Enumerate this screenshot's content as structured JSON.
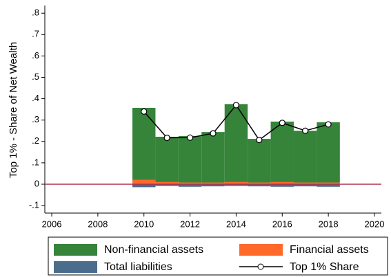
{
  "chart_data": {
    "type": "bar",
    "y_label": "Top 1% - Share of Net Wealth",
    "x": [
      2010,
      2011,
      2012,
      2013,
      2014,
      2015,
      2016,
      2017,
      2018
    ],
    "xlim": [
      2005.7,
      2020.3
    ],
    "xticks": [
      2006,
      2008,
      2010,
      2012,
      2014,
      2016,
      2018,
      2020
    ],
    "ylim": [
      -0.135,
      0.836
    ],
    "yticks": [
      {
        "value": -0.1,
        "label": "-.1"
      },
      0,
      {
        "value": 0.1,
        "label": ".1"
      },
      {
        "value": 0.2,
        "label": ".2"
      },
      {
        "value": 0.3,
        "label": ".3"
      },
      {
        "value": 0.4,
        "label": ".4"
      },
      {
        "value": 0.5,
        "label": ".5"
      },
      {
        "value": 0.6,
        "label": ".6"
      },
      {
        "value": 0.7,
        "label": ".7"
      },
      {
        "value": 0.8,
        "label": ".8"
      }
    ],
    "zero_line_color": "#b0304a",
    "series": [
      {
        "name": "Non-financial assets",
        "type": "bar",
        "color": "#36843a",
        "values": [
          0.337,
          0.212,
          0.217,
          0.236,
          0.365,
          0.204,
          0.283,
          0.242,
          0.282
        ]
      },
      {
        "name": "Financial assets",
        "type": "bar",
        "color": "#ff6a2b",
        "values": [
          0.02,
          0.01,
          0.008,
          0.008,
          0.01,
          0.008,
          0.01,
          0.008,
          0.008
        ]
      },
      {
        "name": "Total liabilities",
        "type": "bar",
        "color": "#4a6d8c",
        "values": [
          -0.014,
          -0.008,
          -0.012,
          -0.01,
          -0.008,
          -0.01,
          -0.012,
          -0.01,
          -0.012
        ]
      },
      {
        "name": "Top 1% Share",
        "type": "line",
        "color": "#000000",
        "values": [
          0.34,
          0.217,
          0.218,
          0.238,
          0.37,
          0.207,
          0.287,
          0.25,
          0.28
        ]
      }
    ]
  }
}
